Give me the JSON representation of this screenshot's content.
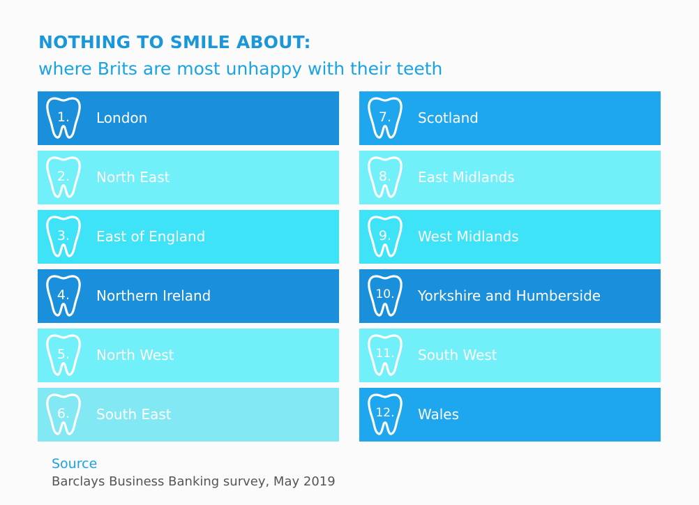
{
  "title": "NOTHING TO SMILE ABOUT:",
  "subtitle": "where Brits are most unhappy with their teeth",
  "colors": {
    "title": "#1a96dd",
    "dark_blue": "#1a8fdc",
    "mid_blue": "#1ea6ee",
    "cyan": "#3ee3f6",
    "light_cyan": "#72eef7",
    "pale_cyan": "#82e8f4"
  },
  "left_column": [
    {
      "rank": "1.",
      "region": "London",
      "color": "#1a8fdc"
    },
    {
      "rank": "2.",
      "region": "North East",
      "color": "#72f0f9"
    },
    {
      "rank": "3.",
      "region": "East of England",
      "color": "#3ee3f7"
    },
    {
      "rank": "4.",
      "region": "Northern Ireland",
      "color": "#1a8fdc"
    },
    {
      "rank": "5.",
      "region": "North West",
      "color": "#72f0f9"
    },
    {
      "rank": "6.",
      "region": "South East",
      "color": "#82e8f4"
    }
  ],
  "right_column": [
    {
      "rank": "7.",
      "region": "Scotland",
      "color": "#1ea6ee"
    },
    {
      "rank": "8.",
      "region": "East Midlands",
      "color": "#72f0f9"
    },
    {
      "rank": "9.",
      "region": "West Midlands",
      "color": "#3ee3f7"
    },
    {
      "rank": "10.",
      "region": "Yorkshire and Humberside",
      "color": "#1a8fdc"
    },
    {
      "rank": "11.",
      "region": "South West",
      "color": "#72f0f9"
    },
    {
      "rank": "12.",
      "region": "Wales",
      "color": "#1ea6ee"
    }
  ],
  "source": {
    "label": "Source",
    "text": "Barclays Business Banking survey, May 2019"
  }
}
